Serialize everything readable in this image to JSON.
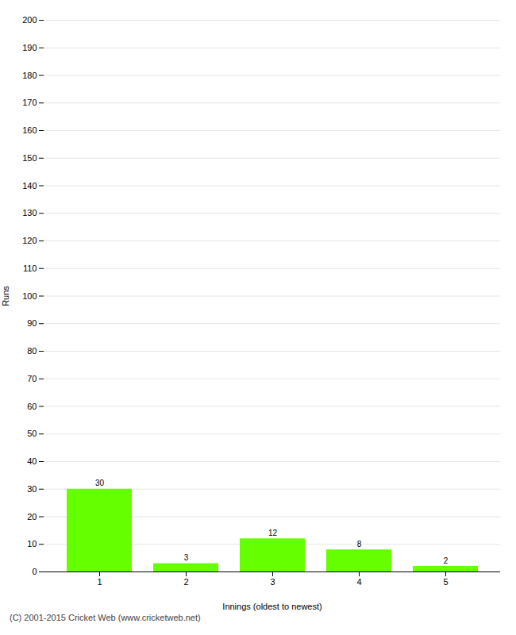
{
  "chart_data": {
    "type": "bar",
    "categories": [
      1,
      2,
      3,
      4,
      5
    ],
    "values": [
      30,
      3,
      12,
      8,
      2
    ],
    "color": "#66ff00",
    "xlabel": "Innings (oldest to newest)",
    "ylabel": "Runs",
    "ylim": [
      0,
      200
    ],
    "yticks": [
      0,
      10,
      20,
      30,
      40,
      50,
      60,
      70,
      80,
      90,
      100,
      110,
      120,
      130,
      140,
      150,
      160,
      170,
      180,
      190,
      200
    ],
    "grid": true,
    "data_labels": true,
    "caption": "(C) 2001-2015 Cricket Web (www.cricketweb.net)"
  }
}
